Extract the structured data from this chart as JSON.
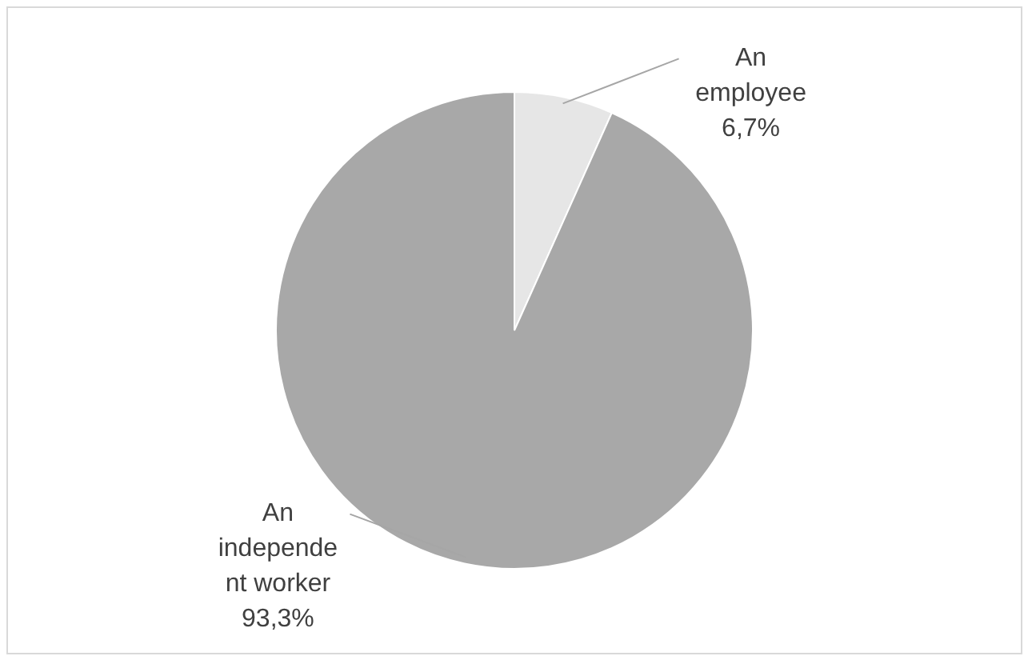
{
  "chart_data": {
    "type": "pie",
    "categories": [
      "An employee",
      "An independent worker"
    ],
    "values": [
      6.7,
      93.3
    ],
    "colors": [
      "#e6e6e6",
      "#a8a8a8"
    ],
    "value_labels": [
      "6,7%",
      "93,3%"
    ],
    "legend": false
  }
}
